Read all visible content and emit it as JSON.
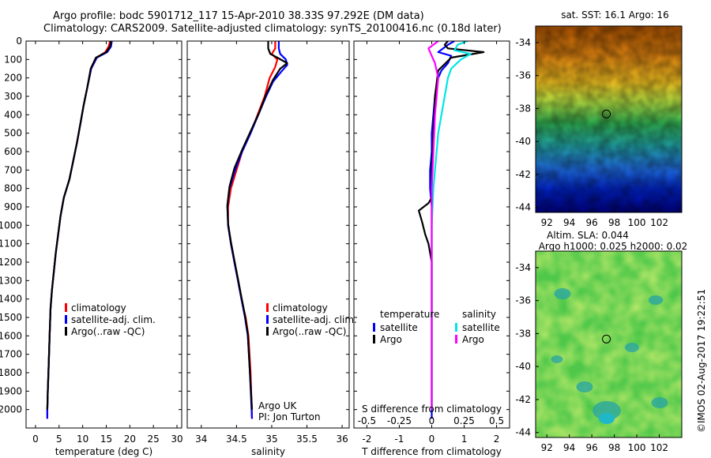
{
  "title_line1": "Argo profile: bodc 5901712_117 15-Apr-2010 38.33S 97.292E (DM data)",
  "title_line2": "Climatology: CARS2009. Satellite-adjusted climatology: synTS_20100416.nc (0.18d later)",
  "credit": "©IMOS 02-Aug-2017 19:22:51",
  "colors": {
    "climatology": "#ff0000",
    "satellite": "#0000ff",
    "argo": "#000000",
    "sal_satellite": "#00e5e5",
    "sal_argo": "#ff00ff"
  },
  "chart_data": [
    {
      "type": "line",
      "xlabel": "temperature (deg C)",
      "xlim": [
        -2,
        31
      ],
      "ylim": [
        2100,
        0
      ],
      "xticks": [
        0,
        5,
        10,
        15,
        20,
        25,
        30
      ],
      "yticks": [
        0,
        100,
        200,
        300,
        400,
        500,
        600,
        700,
        800,
        900,
        1000,
        1100,
        1200,
        1300,
        1400,
        1500,
        1600,
        1700,
        1800,
        1900,
        2000
      ],
      "legend": [
        "climatology",
        "satellite-adj. clim.",
        "Argo(..raw -QC)"
      ],
      "series": [
        {
          "name": "climatology",
          "color": "#ff0000",
          "x": [
            15.8,
            15.5,
            14.8,
            13.0,
            11.8,
            11.0,
            10.2,
            9.5,
            8.8,
            8.0,
            7.2,
            6.0,
            5.3,
            4.8,
            4.3,
            3.9,
            3.5,
            3.2,
            3.0,
            2.8,
            2.6,
            2.5,
            2.5
          ],
          "y": [
            0,
            30,
            60,
            90,
            150,
            250,
            350,
            450,
            550,
            650,
            750,
            850,
            950,
            1050,
            1150,
            1250,
            1350,
            1450,
            1600,
            1750,
            1900,
            2000,
            2050
          ]
        },
        {
          "name": "satellite-adj. clim.",
          "color": "#0000ff",
          "x": [
            16.2,
            16.0,
            15.2,
            13.0,
            11.8,
            11.0,
            10.2,
            9.5,
            8.8,
            8.0,
            7.2,
            6.0,
            5.3,
            4.8,
            4.3,
            3.9,
            3.5,
            3.2,
            3.0,
            2.8,
            2.6,
            2.5,
            2.5
          ],
          "y": [
            0,
            30,
            60,
            90,
            150,
            250,
            350,
            450,
            550,
            650,
            750,
            850,
            950,
            1050,
            1150,
            1250,
            1350,
            1450,
            1600,
            1750,
            1900,
            2000,
            2050
          ]
        },
        {
          "name": "Argo(..raw -QC)",
          "color": "#000000",
          "x": [
            16.0,
            15.8,
            15.0,
            12.8,
            11.7,
            11.0,
            10.2,
            9.5,
            8.8,
            8.0,
            7.2,
            6.0,
            5.3,
            4.8,
            4.3,
            3.9,
            3.5,
            3.2,
            3.0,
            2.8,
            2.6,
            2.5
          ],
          "y": [
            0,
            30,
            60,
            90,
            150,
            250,
            350,
            450,
            550,
            650,
            750,
            850,
            950,
            1050,
            1150,
            1250,
            1350,
            1450,
            1600,
            1750,
            1900,
            2000
          ]
        }
      ]
    },
    {
      "type": "line",
      "xlabel": "salinity",
      "xlim": [
        33.8,
        36.1
      ],
      "ylim": [
        2100,
        0
      ],
      "xticks": [
        34,
        34.5,
        35,
        35.5,
        36
      ],
      "legend": [
        "climatology",
        "satellite-adj. clim.",
        "Argo(..raw -QC)"
      ],
      "annotation": [
        "Argo UK",
        "PI: Jon Turton"
      ],
      "series": [
        {
          "name": "climatology",
          "color": "#ff0000",
          "x": [
            35.05,
            35.05,
            35.0,
            35.08,
            35.05,
            34.97,
            34.9,
            34.8,
            34.7,
            34.58,
            34.5,
            34.42,
            34.38,
            34.38,
            34.42,
            34.47,
            34.52,
            34.57,
            34.63,
            34.67,
            34.7,
            34.72
          ],
          "y": [
            0,
            40,
            70,
            100,
            140,
            200,
            300,
            400,
            500,
            600,
            700,
            800,
            900,
            1000,
            1100,
            1200,
            1300,
            1400,
            1500,
            1600,
            1800,
            2050
          ]
        },
        {
          "name": "satellite-adj. clim.",
          "color": "#0000ff",
          "x": [
            35.1,
            35.1,
            35.12,
            35.2,
            35.22,
            35.15,
            35.02,
            34.92,
            34.81,
            34.7,
            34.58,
            34.48,
            34.4,
            34.37,
            34.38,
            34.42,
            34.47,
            34.52,
            34.57,
            34.62,
            34.66,
            34.69,
            34.72
          ],
          "y": [
            0,
            40,
            70,
            100,
            130,
            160,
            220,
            300,
            400,
            500,
            600,
            700,
            800,
            900,
            1000,
            1100,
            1200,
            1300,
            1400,
            1500,
            1600,
            1800,
            2050
          ]
        },
        {
          "name": "Argo(..raw -QC)",
          "color": "#000000",
          "x": [
            34.95,
            34.95,
            34.98,
            35.08,
            35.22,
            35.12,
            35.02,
            34.92,
            34.82,
            34.7,
            34.58,
            34.47,
            34.4,
            34.37,
            34.38,
            34.42,
            34.47,
            34.52,
            34.57,
            34.62,
            34.66,
            34.69,
            34.72
          ],
          "y": [
            0,
            40,
            70,
            90,
            120,
            150,
            210,
            290,
            390,
            490,
            590,
            690,
            790,
            890,
            990,
            1090,
            1190,
            1290,
            1390,
            1490,
            1590,
            1790,
            2000
          ]
        }
      ]
    },
    {
      "type": "line",
      "xlabel": "T difference from climatology",
      "xlabel_top": "S difference from climatology",
      "xlim": [
        -2.4,
        2.4
      ],
      "ylim": [
        2100,
        0
      ],
      "xticks": [
        -2,
        -1,
        0,
        1,
        2
      ],
      "xticklabels_top": [
        "-0.5",
        "-0.25",
        "0",
        "0.25",
        "0.5"
      ],
      "xticks_top": [
        -2,
        -1,
        0,
        1,
        2
      ],
      "legend_titles": [
        "temperature",
        "salinity"
      ],
      "legend": [
        "satellite",
        "Argo",
        "satellite",
        "Argo"
      ],
      "series": [
        {
          "name": "satellite",
          "color": "#0000ff",
          "x": [
            0.7,
            0.5,
            0.2,
            0.6,
            0.5,
            0.3,
            0.2,
            0.1,
            0.05,
            0.0,
            0.0,
            -0.05,
            -0.05,
            0.0,
            0.0,
            0.0,
            0.0,
            0.0,
            0.0,
            0.0,
            0.0,
            0.0
          ],
          "y": [
            0,
            20,
            60,
            80,
            120,
            160,
            200,
            300,
            400,
            500,
            600,
            700,
            800,
            900,
            1000,
            1100,
            1200,
            1400,
            1600,
            1800,
            2000,
            2050
          ]
        },
        {
          "name": "Argo",
          "color": "#000000",
          "x": [
            0.5,
            0.4,
            0.5,
            1.6,
            0.6,
            0.2,
            0.1,
            0.05,
            0.0,
            0.0,
            0.0,
            -0.1,
            -0.4,
            -0.3,
            -0.2,
            -0.1,
            0.0,
            0.0,
            0.0
          ],
          "y": [
            0,
            20,
            40,
            60,
            90,
            160,
            300,
            500,
            700,
            800,
            850,
            880,
            920,
            980,
            1050,
            1100,
            1200,
            1500,
            2000
          ]
        },
        {
          "name": "satellite",
          "color": "#00e5e5",
          "x": [
            1.1,
            0.8,
            0.7,
            1.2,
            0.9,
            0.6,
            0.5,
            0.4,
            0.3,
            0.2,
            0.15,
            0.1,
            0.05,
            0.0,
            0.0,
            0.0,
            0.0,
            0.0
          ],
          "y": [
            0,
            20,
            50,
            70,
            100,
            150,
            200,
            300,
            400,
            500,
            600,
            700,
            800,
            1000,
            1200,
            1500,
            1800,
            2000
          ]
        },
        {
          "name": "Argo",
          "color": "#ff00ff",
          "x": [
            0.2,
            -0.1,
            0.0,
            0.1,
            0.2,
            0.15,
            0.1,
            0.05,
            0.0,
            0.0,
            0.0,
            0.0
          ],
          "y": [
            0,
            40,
            80,
            120,
            200,
            300,
            400,
            600,
            800,
            1200,
            1600,
            2000
          ]
        }
      ]
    },
    {
      "type": "heatmap",
      "title": "sat. SST: 16.1 Argo: 16",
      "xticks": [
        92,
        94,
        96,
        98,
        100,
        102
      ],
      "yticks": [
        -34,
        -36,
        -38,
        -40,
        -42,
        -44
      ],
      "xlim": [
        91,
        104
      ],
      "ylim": [
        -44.3,
        -33
      ],
      "marker": {
        "lon": 97.292,
        "lat": -38.33
      }
    },
    {
      "type": "heatmap",
      "title_lines": [
        "Altim. SLA: 0.044",
        "Argo h1000: 0.025 h2000: 0.02"
      ],
      "xticks": [
        92,
        94,
        96,
        98,
        100,
        102
      ],
      "yticks": [
        -34,
        -36,
        -38,
        -40,
        -42,
        -44
      ],
      "xlim": [
        91,
        104
      ],
      "ylim": [
        -44.3,
        -33
      ],
      "marker": {
        "lon": 97.292,
        "lat": -38.33
      }
    }
  ]
}
